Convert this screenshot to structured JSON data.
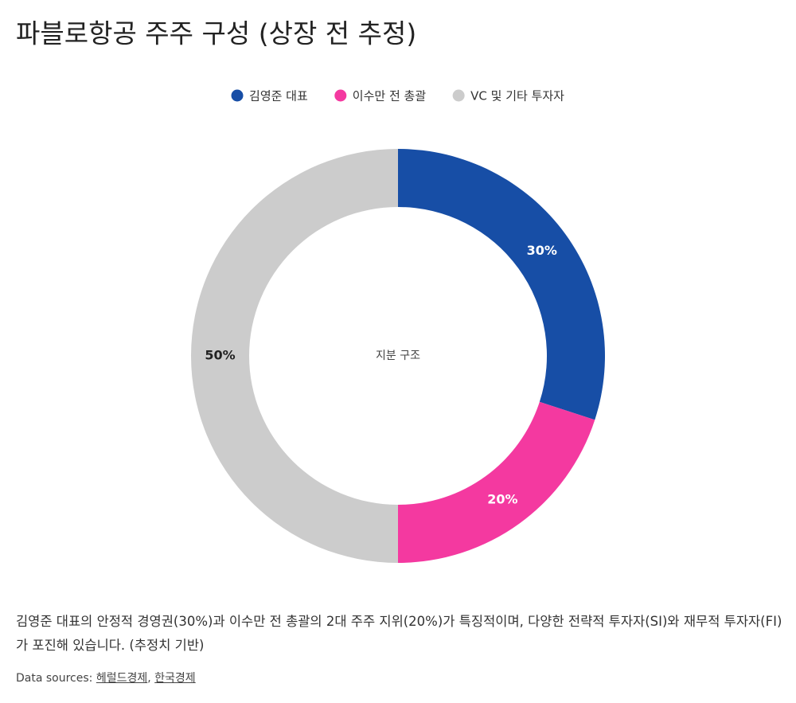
{
  "chart_data": {
    "type": "pie",
    "title": "파블로항공 주주 구성 (상장 전 추정)",
    "categories": [
      "김영준 대표",
      "이수만 전 총괄",
      "VC 및 기타 투자자"
    ],
    "values": [
      30,
      20,
      50
    ],
    "value_labels": [
      "30%",
      "20%",
      "50%"
    ],
    "colors": [
      "#174ea6",
      "#f439a0",
      "#cccccc"
    ],
    "center_label": "지분 구조",
    "description": "김영준 대표의 안정적 경영권(30%)과 이수만 전 총괄의 2대 주주 지위(20%)가 특징적이며, 다양한 전략적 투자자(SI)와 재무적 투자자(FI)가 포진해 있습니다. (추정치 기반)",
    "sources_label": "Data sources:",
    "sources": [
      "헤럴드경제",
      "한국경제"
    ],
    "sources_separator": ", "
  }
}
